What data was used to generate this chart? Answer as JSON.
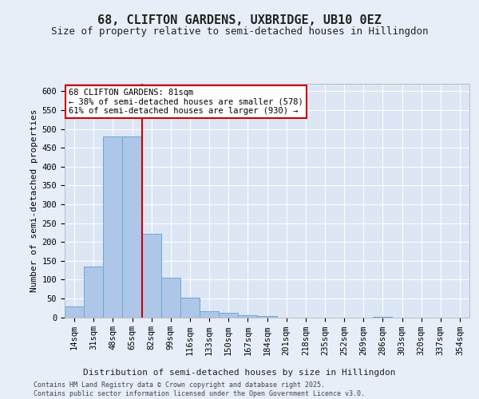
{
  "title1": "68, CLIFTON GARDENS, UXBRIDGE, UB10 0EZ",
  "title2": "Size of property relative to semi-detached houses in Hillingdon",
  "xlabel": "Distribution of semi-detached houses by size in Hillingdon",
  "ylabel": "Number of semi-detached properties",
  "categories": [
    "14sqm",
    "31sqm",
    "48sqm",
    "65sqm",
    "82sqm",
    "99sqm",
    "116sqm",
    "133sqm",
    "150sqm",
    "167sqm",
    "184sqm",
    "201sqm",
    "218sqm",
    "235sqm",
    "252sqm",
    "269sqm",
    "286sqm",
    "303sqm",
    "320sqm",
    "337sqm",
    "354sqm"
  ],
  "values": [
    28,
    135,
    480,
    480,
    222,
    105,
    52,
    15,
    12,
    5,
    3,
    0,
    0,
    0,
    0,
    0,
    1,
    0,
    0,
    0,
    0
  ],
  "bar_color": "#aec6e8",
  "bar_edgecolor": "#6aaad4",
  "vline_x_index": 3,
  "vline_color": "#cc0000",
  "annotation_text": "68 CLIFTON GARDENS: 81sqm\n← 38% of semi-detached houses are smaller (578)\n61% of semi-detached houses are larger (930) →",
  "annotation_box_edgecolor": "#cc0000",
  "annotation_box_facecolor": "#ffffff",
  "ylim": [
    0,
    620
  ],
  "yticks": [
    0,
    50,
    100,
    150,
    200,
    250,
    300,
    350,
    400,
    450,
    500,
    550,
    600
  ],
  "footer": "Contains HM Land Registry data © Crown copyright and database right 2025.\nContains public sector information licensed under the Open Government Licence v3.0.",
  "bg_color": "#e8eef7",
  "plot_bg_color": "#dce6f5",
  "grid_color": "#ffffff",
  "title1_fontsize": 11,
  "title2_fontsize": 9,
  "tick_fontsize": 7.5,
  "ylabel_fontsize": 8,
  "xlabel_fontsize": 8,
  "annotation_fontsize": 7.5,
  "footer_fontsize": 6
}
